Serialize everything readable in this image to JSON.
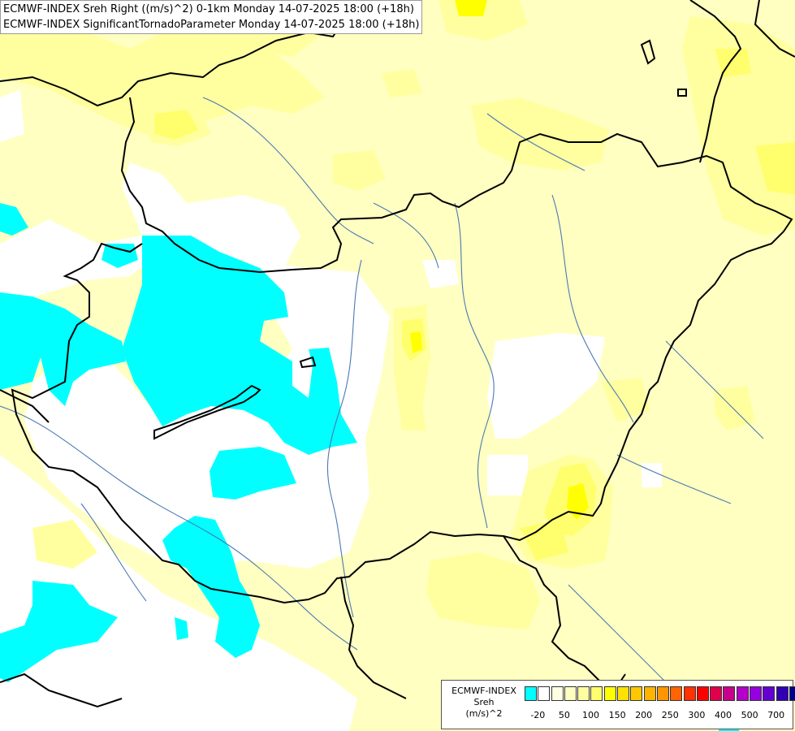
{
  "titles": {
    "line1": "ECMWF-INDEX Sreh Right ((m/s)^2) 0-1km Monday 14-07-2025 18:00 (+18h)",
    "line2": "ECMWF-INDEX SignificantTornadoParameter Monday 14-07-2025 18:00 (+18h)"
  },
  "legend": {
    "line1": "ECMWF-INDEX",
    "line2": "Sreh",
    "line3": "(m/s)^2",
    "colors": [
      "#00ffff",
      "#ffffff",
      "#ffffe1",
      "#ffffc1",
      "#ffffa0",
      "#ffff6e",
      "#ffff00",
      "#ffe100",
      "#ffc800",
      "#ffb400",
      "#ff9600",
      "#ff6400",
      "#ff3200",
      "#ff0000",
      "#e1004b",
      "#c8008c",
      "#b400c8",
      "#9600e1",
      "#6400d2",
      "#3200b4",
      "#00008c"
    ],
    "ticks": [
      "-20",
      "50",
      "100",
      "150",
      "200",
      "250",
      "300",
      "400",
      "500",
      "700"
    ]
  },
  "colors": {
    "cyan_area": "#00ffff",
    "pale_yellow": "#ffffc1",
    "light_yellow": "#ffffa0",
    "yellow": "#ffff6e",
    "strong_yellow": "#ffff00",
    "border": "#000000",
    "rivers": "#4b78b4"
  }
}
